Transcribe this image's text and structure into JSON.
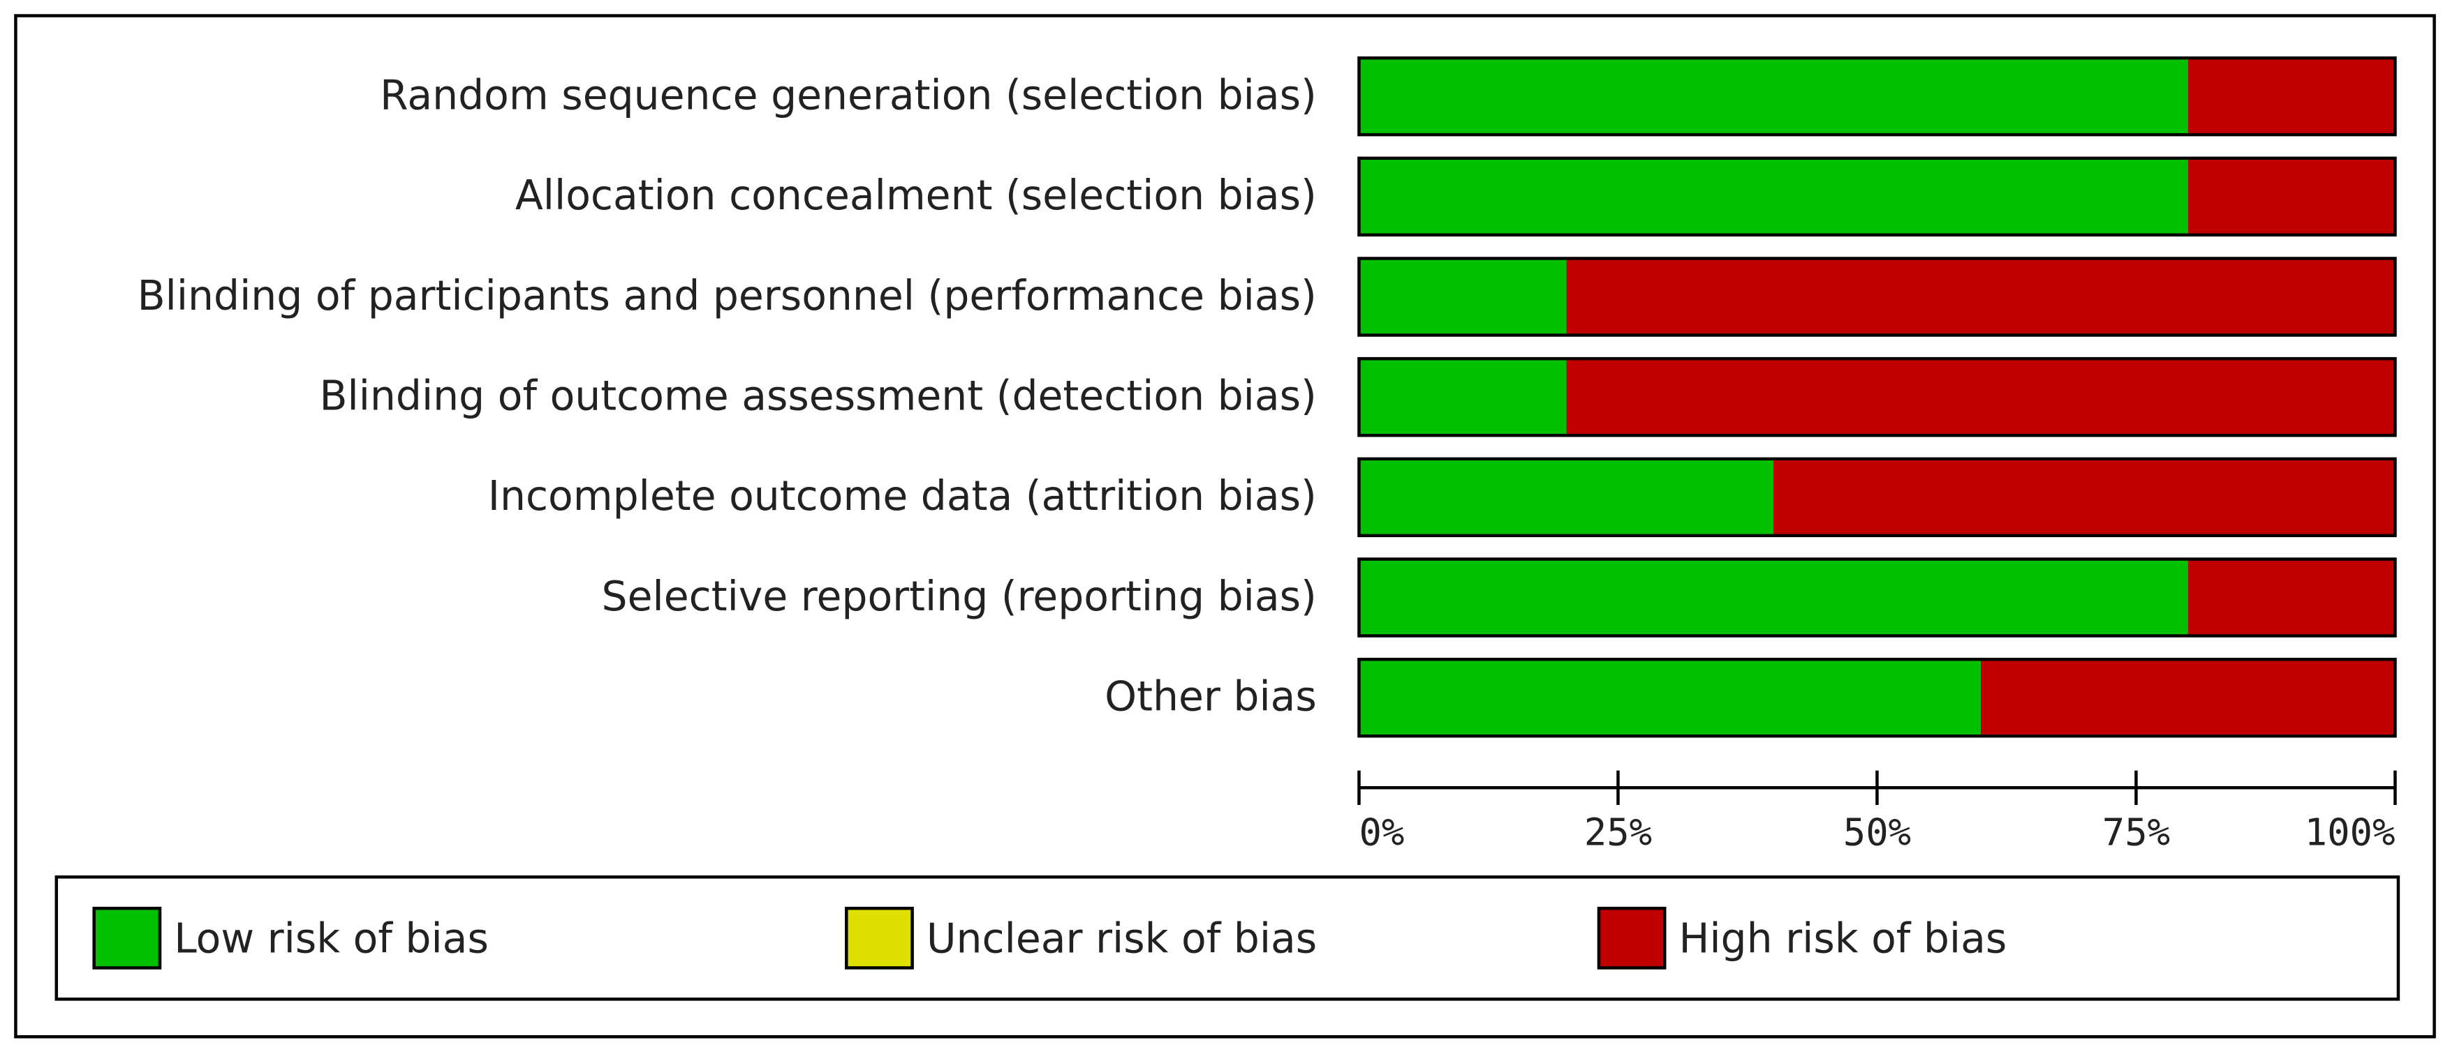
{
  "chart_data": {
    "type": "stacked-bar-horizontal",
    "categories": [
      "Random sequence generation (selection bias)",
      "Allocation concealment (selection bias)",
      "Blinding of participants and personnel (performance bias)",
      "Blinding of outcome assessment (detection bias)",
      "Incomplete outcome data (attrition bias)",
      "Selective reporting (reporting bias)",
      "Other bias"
    ],
    "series": [
      {
        "name": "Low risk of bias",
        "color": "#00c000",
        "values": [
          80,
          80,
          20,
          20,
          40,
          80,
          60
        ]
      },
      {
        "name": "Unclear risk of bias",
        "color": "#e0e000",
        "values": [
          0,
          0,
          0,
          0,
          0,
          0,
          0
        ]
      },
      {
        "name": "High risk of bias",
        "color": "#c00000",
        "values": [
          20,
          20,
          80,
          80,
          60,
          20,
          40
        ]
      }
    ],
    "xlim": [
      0,
      100
    ],
    "xticks": [
      {
        "value": 0,
        "label": "0%"
      },
      {
        "value": 25,
        "label": "25%"
      },
      {
        "value": 50,
        "label": "50%"
      },
      {
        "value": 75,
        "label": "75%"
      },
      {
        "value": 100,
        "label": "100%"
      }
    ]
  }
}
